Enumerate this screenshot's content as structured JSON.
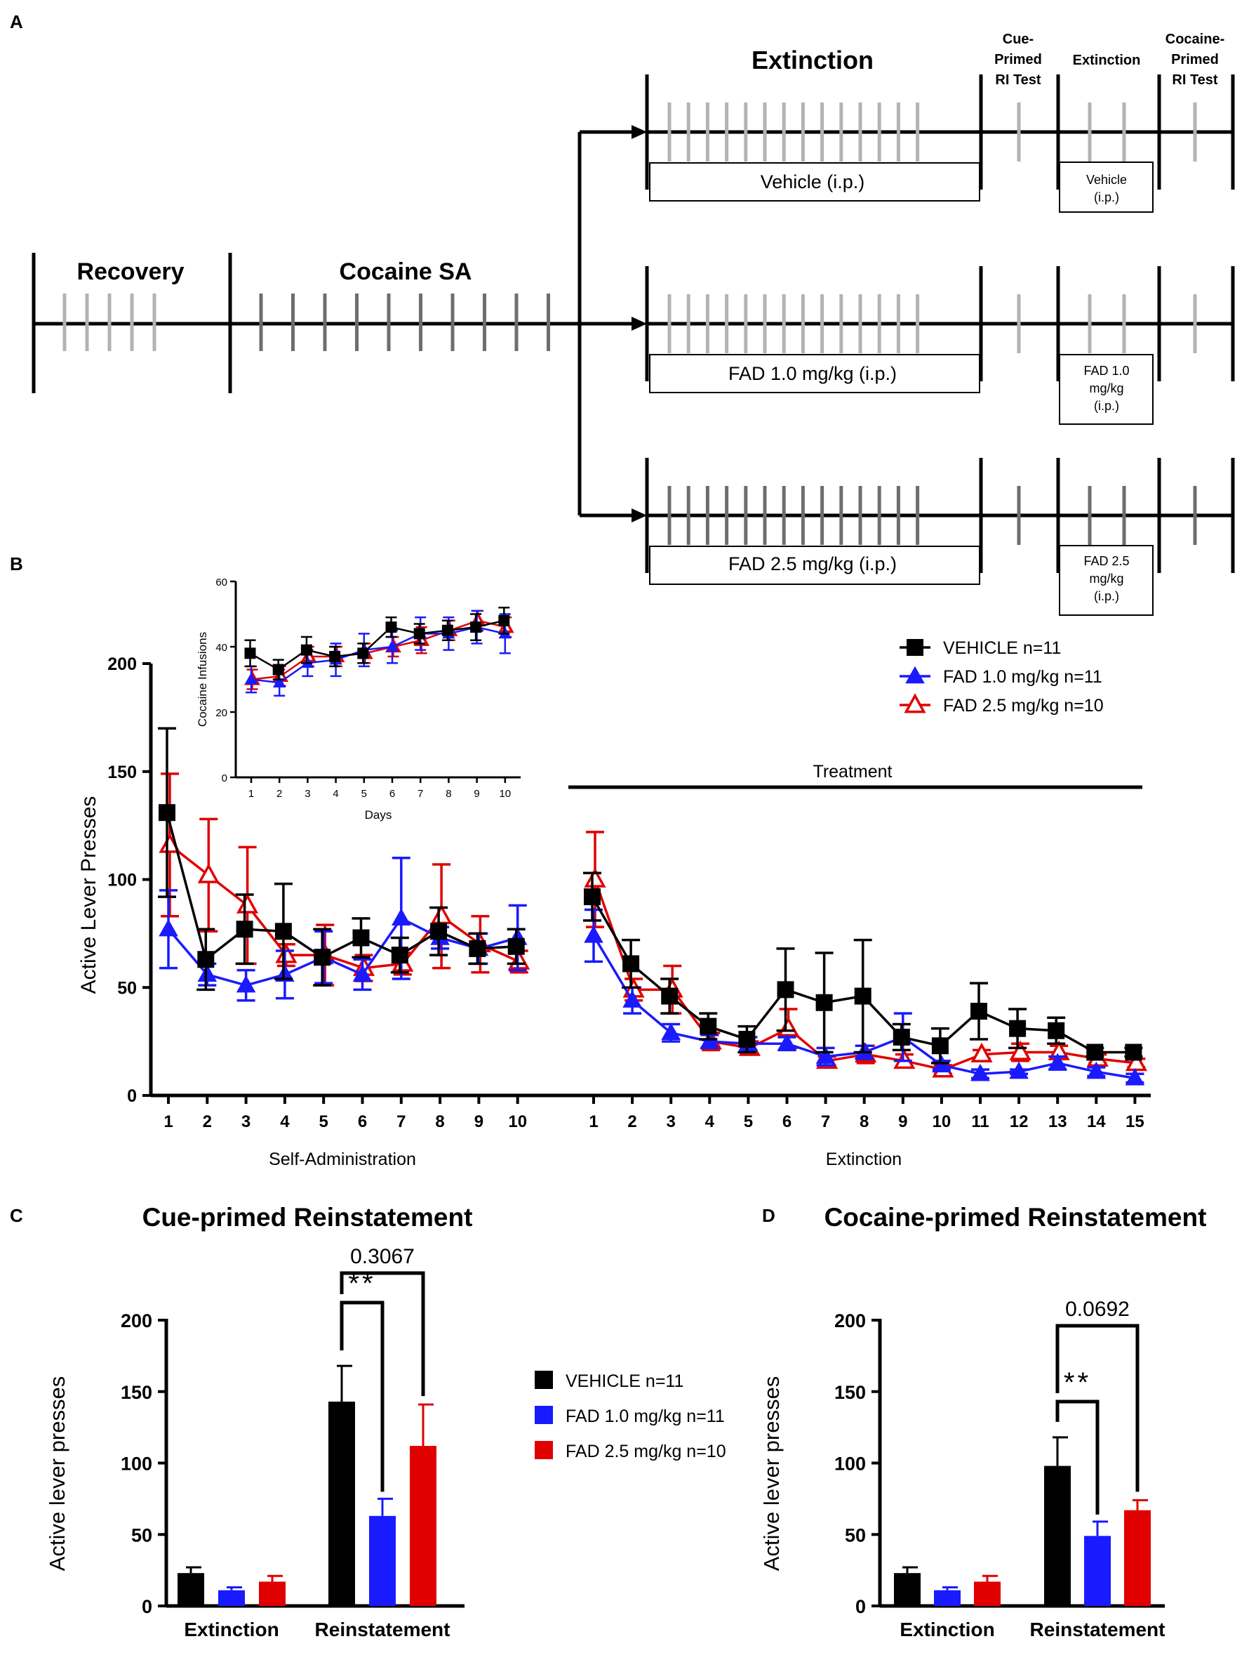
{
  "colors": {
    "vehicle": "#000000",
    "fad1": "#1a1aff",
    "fad25": "#e00000",
    "tick_light": "#b3b3b3",
    "tick_dark": "#6e6e6e"
  },
  "panel_a": {
    "letter": "A",
    "recovery": "Recovery",
    "cocaine_sa": "Cocaine SA",
    "extinction": "Extinction",
    "cue_test": [
      "Cue-",
      "Primed",
      "RI Test"
    ],
    "extinction_small": "Extinction",
    "cocaine_test": [
      "Cocaine-",
      "Primed",
      "RI Test"
    ],
    "rows": [
      {
        "box_label": "Vehicle (i.p.)",
        "small_box": [
          "Vehicle",
          "(i.p.)"
        ]
      },
      {
        "box_label": "FAD 1.0 mg/kg (i.p.)",
        "small_box": [
          "FAD 1.0",
          "mg/kg",
          "(i.p.)"
        ]
      },
      {
        "box_label": "FAD 2.5 mg/kg (i.p.)",
        "small_box": [
          "FAD 2.5",
          "mg/kg",
          "(i.p.)"
        ]
      }
    ]
  },
  "panel_b": {
    "letter": "B",
    "treatment_label": "Treatment",
    "section_labels": [
      "Self-Administration",
      "Extinction"
    ]
  },
  "panel_c": {
    "letter": "C"
  },
  "panel_d": {
    "letter": "D"
  },
  "chart_data": [
    {
      "id": "b_main",
      "type": "line",
      "ylabel": "Active Lever Presses",
      "ylim": [
        0,
        200
      ],
      "yticks": [
        0,
        50,
        100,
        150,
        200
      ],
      "legend": "top-right",
      "segments": [
        {
          "name": "Self-Administration",
          "x": [
            1,
            2,
            3,
            4,
            5,
            6,
            7,
            8,
            9,
            10
          ]
        },
        {
          "name": "Extinction",
          "x": [
            1,
            2,
            3,
            4,
            5,
            6,
            7,
            8,
            9,
            10,
            11,
            12,
            13,
            14,
            15
          ]
        }
      ],
      "series": [
        {
          "name": "VEHICLE n=11",
          "color": "#000000",
          "marker": "square",
          "sa": [
            131,
            63,
            77,
            76,
            64,
            73,
            65,
            76,
            68,
            69
          ],
          "sa_err": [
            39,
            14,
            16,
            22,
            13,
            9,
            8,
            11,
            7,
            8
          ],
          "ext": [
            92,
            61,
            46,
            32,
            26,
            49,
            43,
            46,
            27,
            23,
            39,
            31,
            30,
            20,
            20
          ],
          "ext_err": [
            11,
            11,
            8,
            6,
            6,
            19,
            23,
            26,
            6,
            8,
            13,
            9,
            6,
            2,
            2
          ]
        },
        {
          "name": "FAD 1.0 mg/kg n=11",
          "color": "#1a1aff",
          "marker": "triangle",
          "sa": [
            77,
            56,
            51,
            56,
            64,
            56,
            82,
            73,
            68,
            73
          ],
          "sa_err": [
            18,
            5,
            7,
            11,
            12,
            7,
            28,
            5,
            7,
            15
          ],
          "ext": [
            74,
            44,
            29,
            25,
            24,
            24,
            18,
            20,
            27,
            14,
            10,
            11,
            15,
            11,
            8
          ],
          "ext_err": [
            12,
            6,
            4,
            3,
            3,
            3,
            4,
            3,
            11,
            2,
            2,
            1,
            3,
            2,
            2
          ]
        },
        {
          "name": "FAD 2.5 mg/kg n=10",
          "color": "#e00000",
          "marker": "open-triangle",
          "sa": [
            116,
            102,
            88,
            65,
            65,
            59,
            61,
            83,
            70,
            62
          ],
          "sa_err": [
            33,
            26,
            27,
            5,
            14,
            6,
            5,
            24,
            13,
            5
          ],
          "ext": [
            100,
            49,
            49,
            25,
            22,
            31,
            16,
            19,
            16,
            12,
            19,
            20,
            20,
            17,
            15
          ],
          "ext_err": [
            22,
            5,
            11,
            4,
            3,
            9,
            2,
            4,
            3,
            2,
            2,
            4,
            3,
            2,
            2
          ]
        }
      ]
    },
    {
      "id": "b_inset",
      "type": "line",
      "xlabel": "Days",
      "ylabel": "Cocaine Infusions",
      "ylim": [
        0,
        60
      ],
      "yticks": [
        0,
        20,
        40,
        60
      ],
      "x": [
        1,
        2,
        3,
        4,
        5,
        6,
        7,
        8,
        9,
        10
      ],
      "series": [
        {
          "name": "VEHICLE",
          "color": "#000000",
          "marker": "square",
          "values": [
            38,
            33,
            39,
            37,
            38,
            46,
            44,
            45,
            46,
            48
          ],
          "err": [
            4,
            3,
            4,
            3,
            3,
            3,
            3,
            3,
            4,
            4
          ]
        },
        {
          "name": "FAD 1.0 mg/kg",
          "color": "#1a1aff",
          "marker": "triangle",
          "values": [
            30,
            29,
            35,
            36,
            39,
            40,
            44,
            44,
            46,
            44
          ],
          "err": [
            4,
            4,
            4,
            5,
            5,
            5,
            5,
            5,
            5,
            6
          ]
        },
        {
          "name": "FAD 2.5 mg/kg",
          "color": "#e00000",
          "marker": "open-triangle",
          "values": [
            30,
            31,
            37,
            37,
            38,
            40,
            42,
            45,
            48,
            46
          ],
          "err": [
            3,
            3,
            3,
            3,
            3,
            3,
            4,
            3,
            3,
            3
          ]
        }
      ]
    },
    {
      "id": "c_bar",
      "type": "bar",
      "title": "Cue-primed Reinstatement",
      "ylabel": "Active lever presses",
      "ylim": [
        0,
        200
      ],
      "yticks": [
        0,
        50,
        100,
        150,
        200
      ],
      "categories": [
        "Extinction",
        "Reinstatement"
      ],
      "legend": "right",
      "series": [
        {
          "name": "VEHICLE n=11",
          "color": "#000000",
          "values": [
            23,
            143
          ],
          "err": [
            4,
            25
          ]
        },
        {
          "name": "FAD 1.0 mg/kg n=11",
          "color": "#1a1aff",
          "values": [
            11,
            63
          ],
          "err": [
            2,
            12
          ]
        },
        {
          "name": "FAD 2.5 mg/kg n=10",
          "color": "#e00000",
          "values": [
            17,
            112
          ],
          "err": [
            4,
            29
          ]
        }
      ],
      "annotations": [
        {
          "text": "**",
          "between": [
            "VEHICLE n=11",
            "FAD 1.0 mg/kg n=11"
          ],
          "category": "Reinstatement"
        },
        {
          "text": "0.3067",
          "between": [
            "VEHICLE n=11",
            "FAD 2.5 mg/kg n=10"
          ],
          "category": "Reinstatement"
        }
      ]
    },
    {
      "id": "d_bar",
      "type": "bar",
      "title": "Cocaine-primed Reinstatement",
      "ylabel": "Active lever presses",
      "ylim": [
        0,
        200
      ],
      "yticks": [
        0,
        50,
        100,
        150,
        200
      ],
      "categories": [
        "Extinction",
        "Reinstatement"
      ],
      "series": [
        {
          "name": "VEHICLE n=11",
          "color": "#000000",
          "values": [
            23,
            98
          ],
          "err": [
            4,
            20
          ]
        },
        {
          "name": "FAD 1.0 mg/kg n=11",
          "color": "#1a1aff",
          "values": [
            11,
            49
          ],
          "err": [
            2,
            10
          ]
        },
        {
          "name": "FAD 2.5 mg/kg n=10",
          "color": "#e00000",
          "values": [
            17,
            67
          ],
          "err": [
            4,
            7
          ]
        }
      ],
      "annotations": [
        {
          "text": "**",
          "between": [
            "VEHICLE n=11",
            "FAD 1.0 mg/kg n=11"
          ],
          "category": "Reinstatement"
        },
        {
          "text": "0.0692",
          "between": [
            "VEHICLE n=11",
            "FAD 2.5 mg/kg n=10"
          ],
          "category": "Reinstatement"
        }
      ]
    }
  ]
}
